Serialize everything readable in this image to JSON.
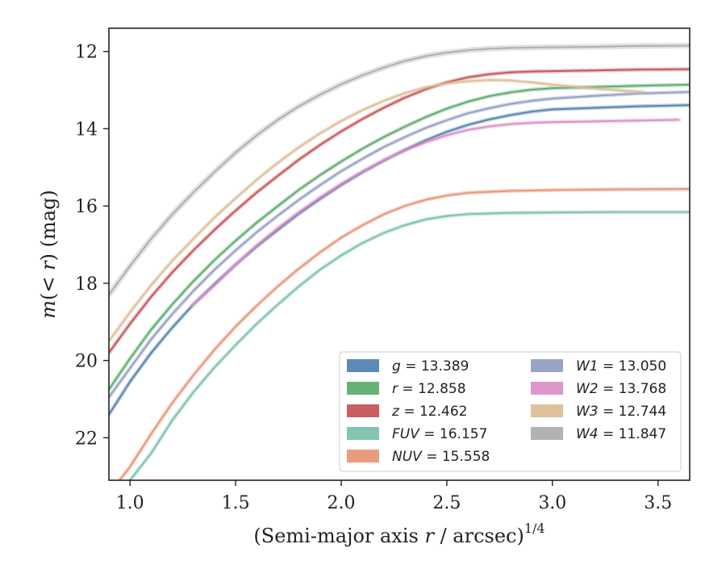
{
  "chart_data": {
    "type": "line",
    "xlabel": "(Semi-major axis r / arcsec)",
    "xlabel_parts": {
      "open": "(Semi-major axis ",
      "var": "r",
      "rest": " / arcsec)",
      "sup": "1/4"
    },
    "ylabel": "m(< r) (mag)",
    "ylabel_parts": {
      "m": "m",
      "open": "(",
      "lt": "< ",
      "r": "r",
      "close": ") (mag)"
    },
    "xlim": [
      0.9,
      3.65
    ],
    "ylim": [
      23.1,
      11.4
    ],
    "y_inverted": true,
    "xticks": [
      1.0,
      1.5,
      2.0,
      2.5,
      3.0,
      3.5
    ],
    "xtick_labels": [
      "1.0",
      "1.5",
      "2.0",
      "2.5",
      "3.0",
      "3.5"
    ],
    "yticks": [
      12,
      14,
      16,
      18,
      20,
      22
    ],
    "ytick_labels": [
      "12",
      "14",
      "16",
      "18",
      "20",
      "22"
    ],
    "legend_position": "lower-right",
    "legend_columns": 2,
    "series": [
      {
        "name": "g",
        "value": "13.389",
        "color": "#4c7dad",
        "points": [
          [
            0.9,
            21.4
          ],
          [
            1.0,
            20.55
          ],
          [
            1.1,
            19.8
          ],
          [
            1.2,
            19.15
          ],
          [
            1.3,
            18.55
          ],
          [
            1.4,
            18.02
          ],
          [
            1.5,
            17.52
          ],
          [
            1.6,
            17.05
          ],
          [
            1.7,
            16.62
          ],
          [
            1.8,
            16.2
          ],
          [
            1.9,
            15.82
          ],
          [
            2.0,
            15.46
          ],
          [
            2.1,
            15.13
          ],
          [
            2.2,
            14.83
          ],
          [
            2.3,
            14.55
          ],
          [
            2.4,
            14.3
          ],
          [
            2.5,
            14.08
          ],
          [
            2.6,
            13.9
          ],
          [
            2.7,
            13.76
          ],
          [
            2.8,
            13.65
          ],
          [
            2.9,
            13.56
          ],
          [
            3.0,
            13.5
          ],
          [
            3.2,
            13.46
          ],
          [
            3.4,
            13.42
          ],
          [
            3.65,
            13.39
          ]
        ]
      },
      {
        "name": "r",
        "value": "12.858",
        "color": "#55a868",
        "points": [
          [
            0.9,
            20.75
          ],
          [
            1.0,
            19.95
          ],
          [
            1.1,
            19.2
          ],
          [
            1.2,
            18.55
          ],
          [
            1.3,
            17.95
          ],
          [
            1.4,
            17.4
          ],
          [
            1.5,
            16.9
          ],
          [
            1.6,
            16.43
          ],
          [
            1.7,
            16.0
          ],
          [
            1.8,
            15.58
          ],
          [
            1.9,
            15.2
          ],
          [
            2.0,
            14.85
          ],
          [
            2.1,
            14.52
          ],
          [
            2.2,
            14.22
          ],
          [
            2.3,
            13.95
          ],
          [
            2.4,
            13.7
          ],
          [
            2.5,
            13.48
          ],
          [
            2.6,
            13.3
          ],
          [
            2.7,
            13.16
          ],
          [
            2.8,
            13.06
          ],
          [
            2.9,
            12.99
          ],
          [
            3.0,
            12.95
          ],
          [
            3.2,
            12.92
          ],
          [
            3.4,
            12.89
          ],
          [
            3.65,
            12.86
          ]
        ]
      },
      {
        "name": "z",
        "value": "12.462",
        "color": "#c44e52",
        "points": [
          [
            0.9,
            19.8
          ],
          [
            1.0,
            19.05
          ],
          [
            1.1,
            18.35
          ],
          [
            1.2,
            17.72
          ],
          [
            1.3,
            17.15
          ],
          [
            1.4,
            16.62
          ],
          [
            1.5,
            16.12
          ],
          [
            1.6,
            15.65
          ],
          [
            1.7,
            15.22
          ],
          [
            1.8,
            14.8
          ],
          [
            1.9,
            14.42
          ],
          [
            2.0,
            14.07
          ],
          [
            2.1,
            13.75
          ],
          [
            2.2,
            13.46
          ],
          [
            2.3,
            13.2
          ],
          [
            2.4,
            12.98
          ],
          [
            2.5,
            12.8
          ],
          [
            2.6,
            12.67
          ],
          [
            2.7,
            12.59
          ],
          [
            2.8,
            12.54
          ],
          [
            2.9,
            12.52
          ],
          [
            3.0,
            12.51
          ],
          [
            3.2,
            12.49
          ],
          [
            3.4,
            12.47
          ],
          [
            3.65,
            12.46
          ]
        ]
      },
      {
        "name": "FUV",
        "value": "16.157",
        "color": "#76bfa8",
        "points": [
          [
            1.0,
            23.1
          ],
          [
            1.1,
            22.4
          ],
          [
            1.2,
            21.55
          ],
          [
            1.3,
            20.82
          ],
          [
            1.4,
            20.18
          ],
          [
            1.5,
            19.6
          ],
          [
            1.6,
            19.05
          ],
          [
            1.7,
            18.55
          ],
          [
            1.8,
            18.08
          ],
          [
            1.9,
            17.65
          ],
          [
            2.0,
            17.28
          ],
          [
            2.1,
            16.96
          ],
          [
            2.2,
            16.7
          ],
          [
            2.3,
            16.5
          ],
          [
            2.4,
            16.35
          ],
          [
            2.5,
            16.26
          ],
          [
            2.6,
            16.21
          ],
          [
            2.8,
            16.18
          ],
          [
            3.0,
            16.17
          ],
          [
            3.3,
            16.16
          ],
          [
            3.65,
            16.16
          ]
        ]
      },
      {
        "name": "NUV",
        "value": "15.558",
        "color": "#e8906f",
        "points": [
          [
            0.95,
            23.1
          ],
          [
            1.0,
            22.75
          ],
          [
            1.1,
            21.9
          ],
          [
            1.2,
            21.1
          ],
          [
            1.3,
            20.38
          ],
          [
            1.4,
            19.72
          ],
          [
            1.5,
            19.12
          ],
          [
            1.6,
            18.58
          ],
          [
            1.7,
            18.08
          ],
          [
            1.8,
            17.62
          ],
          [
            1.9,
            17.2
          ],
          [
            2.0,
            16.82
          ],
          [
            2.1,
            16.5
          ],
          [
            2.2,
            16.22
          ],
          [
            2.3,
            16.0
          ],
          [
            2.4,
            15.84
          ],
          [
            2.5,
            15.73
          ],
          [
            2.6,
            15.66
          ],
          [
            2.8,
            15.61
          ],
          [
            3.0,
            15.59
          ],
          [
            3.3,
            15.57
          ],
          [
            3.65,
            15.56
          ]
        ]
      },
      {
        "name": "W1",
        "value": "13.050",
        "color": "#8e9bc2",
        "points": [
          [
            0.9,
            20.95
          ],
          [
            1.0,
            20.2
          ],
          [
            1.1,
            19.45
          ],
          [
            1.2,
            18.8
          ],
          [
            1.3,
            18.2
          ],
          [
            1.4,
            17.65
          ],
          [
            1.5,
            17.15
          ],
          [
            1.6,
            16.68
          ],
          [
            1.7,
            16.25
          ],
          [
            1.8,
            15.84
          ],
          [
            1.9,
            15.46
          ],
          [
            2.0,
            15.1
          ],
          [
            2.1,
            14.78
          ],
          [
            2.2,
            14.48
          ],
          [
            2.3,
            14.22
          ],
          [
            2.4,
            13.98
          ],
          [
            2.5,
            13.78
          ],
          [
            2.6,
            13.6
          ],
          [
            2.7,
            13.47
          ],
          [
            2.8,
            13.36
          ],
          [
            2.9,
            13.28
          ],
          [
            3.0,
            13.22
          ],
          [
            3.2,
            13.15
          ],
          [
            3.4,
            13.09
          ],
          [
            3.65,
            13.05
          ]
        ]
      },
      {
        "name": "W2",
        "value": "13.768",
        "color": "#db8bc4",
        "points": [
          [
            1.29,
            18.6
          ],
          [
            1.4,
            18.05
          ],
          [
            1.5,
            17.52
          ],
          [
            1.6,
            17.02
          ],
          [
            1.7,
            16.57
          ],
          [
            1.8,
            16.16
          ],
          [
            1.9,
            15.78
          ],
          [
            2.0,
            15.43
          ],
          [
            2.1,
            15.11
          ],
          [
            2.2,
            14.82
          ],
          [
            2.3,
            14.57
          ],
          [
            2.4,
            14.35
          ],
          [
            2.5,
            14.17
          ],
          [
            2.6,
            14.03
          ],
          [
            2.7,
            13.94
          ],
          [
            2.8,
            13.88
          ],
          [
            2.9,
            13.85
          ],
          [
            3.0,
            13.83
          ],
          [
            3.2,
            13.81
          ],
          [
            3.4,
            13.79
          ],
          [
            3.6,
            13.77
          ]
        ]
      },
      {
        "name": "W3",
        "value": "12.744",
        "color": "#d9bb92",
        "points": [
          [
            0.9,
            19.5
          ],
          [
            1.0,
            18.75
          ],
          [
            1.1,
            18.05
          ],
          [
            1.2,
            17.42
          ],
          [
            1.3,
            16.85
          ],
          [
            1.4,
            16.3
          ],
          [
            1.5,
            15.8
          ],
          [
            1.6,
            15.32
          ],
          [
            1.7,
            14.88
          ],
          [
            1.8,
            14.48
          ],
          [
            1.9,
            14.12
          ],
          [
            2.0,
            13.8
          ],
          [
            2.1,
            13.52
          ],
          [
            2.2,
            13.28
          ],
          [
            2.3,
            13.08
          ],
          [
            2.4,
            12.93
          ],
          [
            2.5,
            12.83
          ],
          [
            2.6,
            12.77
          ],
          [
            2.7,
            12.74
          ],
          [
            2.8,
            12.75
          ],
          [
            2.9,
            12.8
          ],
          [
            3.0,
            12.86
          ],
          [
            3.2,
            12.96
          ],
          [
            3.43,
            13.05
          ]
        ]
      },
      {
        "name": "W4",
        "value": "11.847",
        "color": "#aaaaaa",
        "points": [
          [
            0.9,
            18.3
          ],
          [
            1.0,
            17.55
          ],
          [
            1.1,
            16.85
          ],
          [
            1.2,
            16.22
          ],
          [
            1.3,
            15.65
          ],
          [
            1.4,
            15.12
          ],
          [
            1.5,
            14.62
          ],
          [
            1.6,
            14.17
          ],
          [
            1.7,
            13.77
          ],
          [
            1.8,
            13.42
          ],
          [
            1.9,
            13.12
          ],
          [
            2.0,
            12.85
          ],
          [
            2.1,
            12.62
          ],
          [
            2.2,
            12.42
          ],
          [
            2.3,
            12.25
          ],
          [
            2.4,
            12.12
          ],
          [
            2.5,
            12.03
          ],
          [
            2.6,
            11.97
          ],
          [
            2.7,
            11.93
          ],
          [
            2.8,
            11.91
          ],
          [
            2.9,
            11.9
          ],
          [
            3.0,
            11.89
          ],
          [
            3.2,
            11.88
          ],
          [
            3.4,
            11.86
          ],
          [
            3.65,
            11.85
          ]
        ]
      }
    ]
  }
}
